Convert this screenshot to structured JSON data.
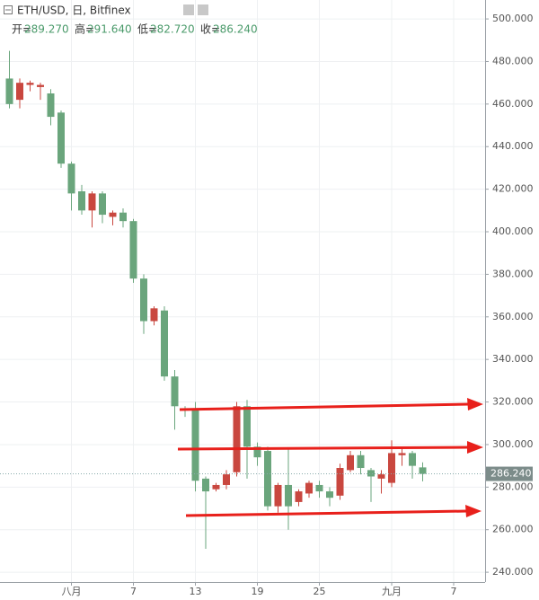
{
  "header": {
    "title": "ETH/USD, 日, Bitfinex",
    "ohlc": [
      {
        "label": "开=",
        "value": "289.270"
      },
      {
        "label": "高=",
        "value": "291.640"
      },
      {
        "label": "低=",
        "value": "282.720"
      },
      {
        "label": "收=",
        "value": "286.240"
      }
    ]
  },
  "chart_data": {
    "type": "candlestick",
    "categories": [
      null,
      null,
      null,
      null,
      null,
      null,
      "八月",
      null,
      null,
      null,
      null,
      null,
      "7",
      null,
      null,
      null,
      null,
      null,
      "13",
      null,
      null,
      null,
      null,
      null,
      "19",
      null,
      null,
      null,
      null,
      null,
      "25",
      null,
      null,
      null,
      null,
      null,
      null,
      "九月",
      null,
      null,
      null,
      null,
      null,
      "7"
    ],
    "open": [
      472,
      462,
      469,
      468,
      465,
      456,
      432,
      419,
      410,
      418,
      407,
      409,
      405,
      378,
      358,
      363,
      332,
      317,
      317,
      284,
      279,
      281,
      287,
      318,
      299,
      297,
      271,
      281,
      273,
      277,
      281,
      278,
      276,
      288,
      295,
      288,
      284,
      282,
      295,
      296,
      289.27,
      null,
      null,
      null
    ],
    "high": [
      485,
      472,
      471,
      470,
      467,
      457,
      433,
      422,
      419,
      419,
      410,
      411,
      406,
      380,
      365,
      365,
      335,
      318,
      320,
      285,
      282,
      288,
      320,
      321,
      301,
      299,
      282,
      298,
      279,
      283,
      283,
      280,
      291,
      297,
      297,
      289,
      288,
      302,
      298,
      297,
      291.64,
      null,
      null,
      null
    ],
    "low": [
      458,
      458,
      466,
      462,
      450,
      430,
      410,
      408,
      402,
      404,
      403,
      402,
      376,
      352,
      356,
      330,
      307,
      313,
      278,
      251,
      278,
      279,
      285,
      284,
      290,
      269,
      268,
      260,
      271,
      275,
      275,
      271,
      274,
      287,
      286,
      273,
      277,
      280,
      290,
      284,
      282.72,
      null,
      null,
      null
    ],
    "close": [
      460,
      470,
      470,
      469,
      454,
      432,
      418,
      410,
      418,
      408,
      409,
      405,
      378,
      358,
      364,
      332,
      318,
      316,
      283,
      278,
      281,
      286,
      318,
      299,
      294,
      271,
      281,
      271,
      278,
      282,
      278,
      275,
      289,
      295,
      289,
      285,
      286,
      296,
      296,
      290,
      286.24,
      null,
      null,
      null
    ],
    "up_color": "#c9473f",
    "down_color": "#6aa57c",
    "ylim": [
      235.4,
      508.9
    ],
    "yticks": [
      {
        "value": 240,
        "label": "240.000"
      },
      {
        "value": 260,
        "label": "260.000"
      },
      {
        "value": 280,
        "label": "280.000"
      },
      {
        "value": 300,
        "label": "300.000"
      },
      {
        "value": 320,
        "label": "320.000"
      },
      {
        "value": 340,
        "label": "340.000"
      },
      {
        "value": 360,
        "label": "360.000"
      },
      {
        "value": 380,
        "label": "380.000"
      },
      {
        "value": 400,
        "label": "400.000"
      },
      {
        "value": 420,
        "label": "420.000"
      },
      {
        "value": 440,
        "label": "440.000"
      },
      {
        "value": 460,
        "label": "460.000"
      },
      {
        "value": 480,
        "label": "480.000"
      },
      {
        "value": 500,
        "label": "500.000"
      }
    ],
    "last_price": {
      "value": 286.24,
      "label": "286.240"
    },
    "grid": true
  }
}
